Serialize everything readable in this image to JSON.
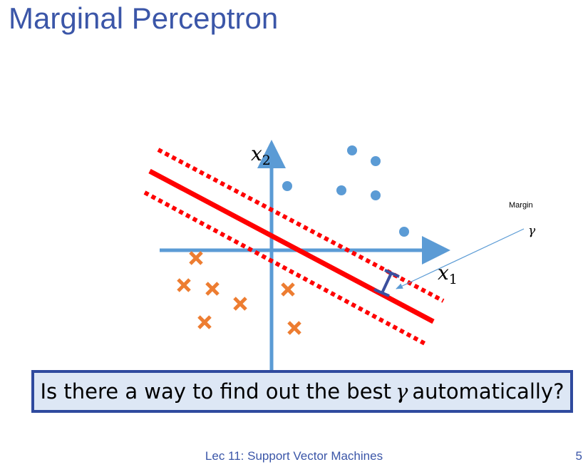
{
  "slide": {
    "title": "Marginal Perceptron",
    "footer": "Lec 11: Support Vector Machines",
    "page_number": "5"
  },
  "diagram": {
    "x1_label": "x",
    "x1_sub": "1",
    "x2_label": "x",
    "x2_sub": "2",
    "margin_label": "Margin",
    "gamma_label": "γ",
    "positive_marker": "circle",
    "negative_marker": "cross",
    "colors": {
      "axis": "#5b9bd5",
      "boundary": "#ff0000",
      "circle": "#5b9bd5",
      "cross": "#ed7d31",
      "margin_bar": "#3b4f9e"
    }
  },
  "callout": {
    "text_before": "Is there a way to find out the best",
    "gamma": "γ",
    "text_after": "automatically?"
  }
}
